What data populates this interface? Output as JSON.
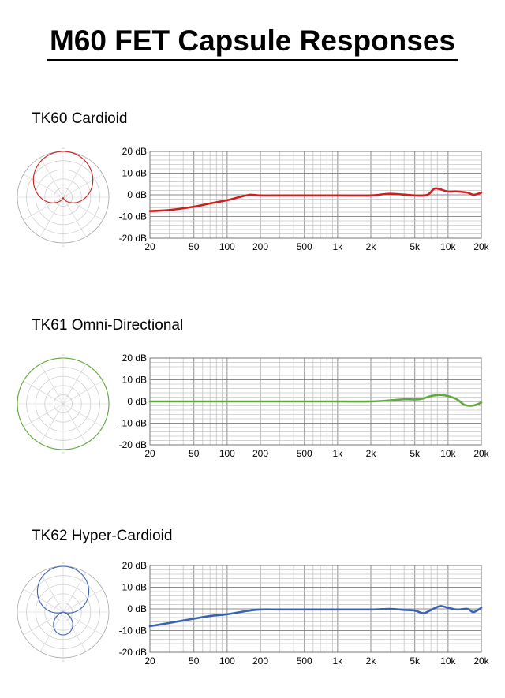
{
  "page": {
    "title": "M60 FET Capsule Responses"
  },
  "sections": [
    {
      "title": "TK60 Cardioid",
      "color": "#cc1f1f",
      "pattern": "cardioid"
    },
    {
      "title": "TK61 Omni-Directional",
      "color": "#5faa3a",
      "pattern": "omni"
    },
    {
      "title": "TK62 Hyper-Cardioid",
      "color": "#3a62b0",
      "pattern": "hypercardioid"
    }
  ],
  "chart_data": [
    {
      "type": "line",
      "title": "TK60 Cardioid",
      "xlabel": "",
      "ylabel": "",
      "x_scale": "log",
      "xlim": [
        20,
        20000
      ],
      "ylim": [
        -20,
        20
      ],
      "grid": true,
      "y_ticks": [
        "20 dB",
        "10 dB",
        "0 dB",
        "-10 dB",
        "-20 dB"
      ],
      "x_ticks": [
        {
          "label": "20",
          "value": 20
        },
        {
          "label": "50",
          "value": 50
        },
        {
          "label": "100",
          "value": 100
        },
        {
          "label": "200",
          "value": 200
        },
        {
          "label": "500",
          "value": 500
        },
        {
          "label": "1k",
          "value": 1000
        },
        {
          "label": "2k",
          "value": 2000
        },
        {
          "label": "5k",
          "value": 5000
        },
        {
          "label": "10k",
          "value": 10000
        },
        {
          "label": "20k",
          "value": 20000
        }
      ],
      "series": [
        {
          "color": "#cc1f1f",
          "x": [
            20,
            30,
            50,
            70,
            100,
            130,
            160,
            200,
            300,
            500,
            1000,
            2000,
            3000,
            5000,
            6500,
            7500,
            8500,
            10000,
            12000,
            15000,
            17000,
            20000
          ],
          "y": [
            -7.5,
            -7,
            -5.5,
            -4,
            -2.5,
            -1,
            0,
            -0.3,
            -0.3,
            -0.3,
            -0.3,
            -0.3,
            0.5,
            -0.3,
            0,
            2.8,
            2.5,
            1.5,
            1.5,
            1,
            0,
            1
          ]
        }
      ]
    },
    {
      "type": "line",
      "title": "TK61 Omni-Directional",
      "xlabel": "",
      "ylabel": "",
      "x_scale": "log",
      "xlim": [
        20,
        20000
      ],
      "ylim": [
        -20,
        20
      ],
      "grid": true,
      "y_ticks": [
        "20 dB",
        "10 dB",
        "0 dB",
        "-10 dB",
        "-20 dB"
      ],
      "x_ticks": [
        {
          "label": "20",
          "value": 20
        },
        {
          "label": "50",
          "value": 50
        },
        {
          "label": "100",
          "value": 100
        },
        {
          "label": "200",
          "value": 200
        },
        {
          "label": "500",
          "value": 500
        },
        {
          "label": "1k",
          "value": 1000
        },
        {
          "label": "2k",
          "value": 2000
        },
        {
          "label": "5k",
          "value": 5000
        },
        {
          "label": "10k",
          "value": 10000
        },
        {
          "label": "20k",
          "value": 20000
        }
      ],
      "series": [
        {
          "color": "#5faa3a",
          "x": [
            20,
            100,
            500,
            1000,
            2000,
            3000,
            4000,
            5500,
            7000,
            8500,
            10000,
            12000,
            14000,
            16000,
            18000,
            20000
          ],
          "y": [
            0,
            0,
            0,
            0,
            0,
            0.5,
            1,
            1,
            2.5,
            3,
            2.5,
            1,
            -1.5,
            -2,
            -1.5,
            -0.5
          ]
        }
      ]
    },
    {
      "type": "line",
      "title": "TK62 Hyper-Cardioid",
      "xlabel": "",
      "ylabel": "",
      "x_scale": "log",
      "xlim": [
        20,
        20000
      ],
      "ylim": [
        -20,
        20
      ],
      "grid": true,
      "y_ticks": [
        "20 dB",
        "10 dB",
        "0 dB",
        "-10 dB",
        "-20 dB"
      ],
      "x_ticks": [
        {
          "label": "20",
          "value": 20
        },
        {
          "label": "50",
          "value": 50
        },
        {
          "label": "100",
          "value": 100
        },
        {
          "label": "200",
          "value": 200
        },
        {
          "label": "500",
          "value": 500
        },
        {
          "label": "1k",
          "value": 1000
        },
        {
          "label": "2k",
          "value": 2000
        },
        {
          "label": "5k",
          "value": 5000
        },
        {
          "label": "10k",
          "value": 10000
        },
        {
          "label": "20k",
          "value": 20000
        }
      ],
      "series": [
        {
          "color": "#3a62b0",
          "x": [
            20,
            30,
            50,
            70,
            100,
            150,
            200,
            300,
            500,
            1000,
            2000,
            3000,
            4000,
            5000,
            6000,
            7000,
            8500,
            10000,
            12000,
            15000,
            17000,
            20000
          ],
          "y": [
            -8,
            -6.5,
            -4.5,
            -3.3,
            -2.5,
            -1,
            -0.3,
            -0.3,
            -0.3,
            -0.3,
            -0.3,
            0,
            -0.5,
            -0.8,
            -2,
            -0.5,
            1.3,
            0.5,
            -0.3,
            0,
            -1.5,
            0.5
          ]
        }
      ]
    }
  ]
}
